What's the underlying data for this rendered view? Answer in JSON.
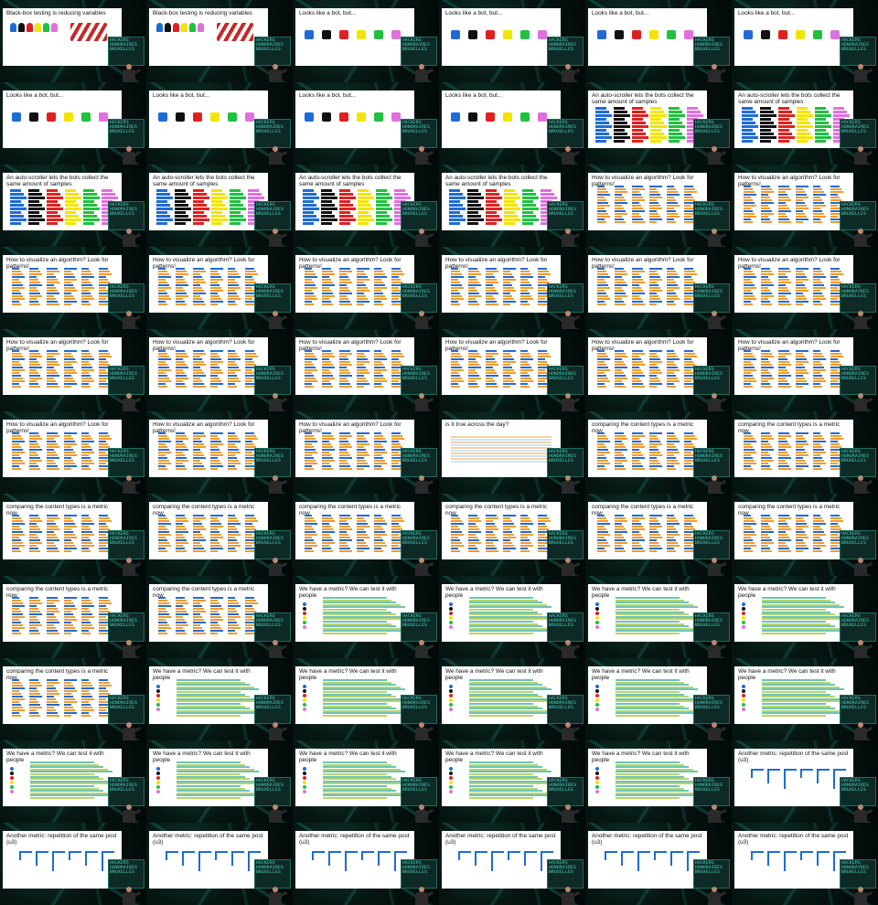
{
  "brand": "HACKERS\nHONORAIRES\nBRUXELLES",
  "colors": {
    "teal": "#2fc8b2",
    "blue": "#1f6bd6",
    "black": "#111111",
    "red": "#e02020",
    "yellow": "#f2e400",
    "green": "#20c040",
    "magenta": "#e070e0",
    "orange": "#f29a2e",
    "gray": "#d9d9d9"
  },
  "slides": [
    {
      "type": "blackbox",
      "title": "Black-box testing is reducing variables"
    },
    {
      "type": "blackbox",
      "title": "Black-box testing is reducing variables"
    },
    {
      "type": "bot",
      "title": "Looks like a bot, but..."
    },
    {
      "type": "bot",
      "title": "Looks like a bot, but..."
    },
    {
      "type": "bot",
      "title": "Looks like a bot, but..."
    },
    {
      "type": "bot",
      "title": "Looks like a bot, but..."
    },
    {
      "type": "bot",
      "title": "Looks like a bot, but..."
    },
    {
      "type": "bot",
      "title": "Looks like a bot, but..."
    },
    {
      "type": "bot",
      "title": "Looks like a bot, but..."
    },
    {
      "type": "bot",
      "title": "Looks like a bot, but..."
    },
    {
      "type": "autoscroll",
      "title": "An auto-scroller lets the bots collect the same amount of samples"
    },
    {
      "type": "autoscroll",
      "title": "An auto-scroller lets the bots collect the same amount of samples"
    },
    {
      "type": "autoscroll",
      "title": "An auto-scroller lets the bots collect the same amount of samples"
    },
    {
      "type": "autoscroll",
      "title": "An auto-scroller lets the bots collect the same amount of samples"
    },
    {
      "type": "autoscroll",
      "title": "An auto-scroller lets the bots collect the same amount of samples"
    },
    {
      "type": "autoscroll",
      "title": "An auto-scroller lets the bots collect the same amount of samples"
    },
    {
      "type": "pattern",
      "title": "How to visualize an algorithm? Look for patterns!"
    },
    {
      "type": "pattern",
      "title": "How to visualize an algorithm? Look for patterns!"
    },
    {
      "type": "pattern",
      "title": "How to visualize an algorithm? Look for patterns!"
    },
    {
      "type": "pattern",
      "title": "How to visualize an algorithm? Look for patterns!"
    },
    {
      "type": "pattern",
      "title": "How to visualize an algorithm? Look for patterns!"
    },
    {
      "type": "pattern",
      "title": "How to visualize an algorithm? Look for patterns!"
    },
    {
      "type": "pattern",
      "title": "How to visualize an algorithm? Look for patterns!"
    },
    {
      "type": "pattern",
      "title": "How to visualize an algorithm? Look for patterns!"
    },
    {
      "type": "pattern",
      "title": "How to visualize an algorithm? Look for patterns!"
    },
    {
      "type": "pattern",
      "title": "How to visualize an algorithm? Look for patterns!"
    },
    {
      "type": "pattern",
      "title": "How to visualize an algorithm? Look for patterns!"
    },
    {
      "type": "pattern",
      "title": "How to visualize an algorithm? Look for patterns!"
    },
    {
      "type": "pattern",
      "title": "How to visualize an algorithm? Look for patterns!"
    },
    {
      "type": "pattern",
      "title": "How to visualize an algorithm? Look for patterns!"
    },
    {
      "type": "pattern",
      "title": "How to visualize an algorithm? Look for patterns!"
    },
    {
      "type": "pattern",
      "title": "How to visualize an algorithm? Look for patterns!"
    },
    {
      "type": "pattern",
      "title": "How to visualize an algorithm? Look for patterns!"
    },
    {
      "type": "day",
      "title": "is it true across the day?"
    },
    {
      "type": "metric",
      "title": "comparing the content types is a metric now"
    },
    {
      "type": "metric",
      "title": "comparing the content types is a metric now"
    },
    {
      "type": "metric",
      "title": "comparing the content types is a metric now"
    },
    {
      "type": "metric",
      "title": "comparing the content types is a metric now"
    },
    {
      "type": "metric",
      "title": "comparing the content types is a metric now"
    },
    {
      "type": "metric",
      "title": "comparing the content types is a metric now"
    },
    {
      "type": "metric",
      "title": "comparing the content types is a metric now"
    },
    {
      "type": "metric",
      "title": "comparing the content types is a metric now"
    },
    {
      "type": "metric",
      "title": "comparing the content types is a metric now"
    },
    {
      "type": "metric",
      "title": "comparing the content types is a metric now"
    },
    {
      "type": "people",
      "title": "We have a metric? We can test it with people"
    },
    {
      "type": "people",
      "title": "We have a metric? We can test it with people"
    },
    {
      "type": "people",
      "title": "We have a metric? We can test it with people"
    },
    {
      "type": "people",
      "title": "We have a metric? We can test it with people"
    },
    {
      "type": "metric",
      "title": "comparing the content types is a metric now"
    },
    {
      "type": "people",
      "title": "We have a metric? We can test it with people"
    },
    {
      "type": "people",
      "title": "We have a metric? We can test it with people"
    },
    {
      "type": "people",
      "title": "We have a metric? We can test it with people"
    },
    {
      "type": "people",
      "title": "We have a metric? We can test it with people"
    },
    {
      "type": "people",
      "title": "We have a metric? We can test it with people"
    },
    {
      "type": "people",
      "title": "We have a metric? We can test it with people"
    },
    {
      "type": "people",
      "title": "We have a metric? We can test it with people"
    },
    {
      "type": "people",
      "title": "We have a metric? We can test it with people"
    },
    {
      "type": "people",
      "title": "We have a metric? We can test it with people"
    },
    {
      "type": "people",
      "title": "We have a metric? We can test it with people"
    },
    {
      "type": "repetition",
      "title": "Another metric: repetition of the same post (u3)"
    },
    {
      "type": "repetition",
      "title": "Another metric: repetition of the same post (u3)"
    },
    {
      "type": "repetition",
      "title": "Another metric: repetition of the same post (u3)"
    },
    {
      "type": "repetition",
      "title": "Another metric: repetition of the same post (u3)"
    },
    {
      "type": "repetition",
      "title": "Another metric: repetition of the same post (u3)"
    },
    {
      "type": "repetition",
      "title": "Another metric: repetition of the same post (u3)"
    },
    {
      "type": "repetition",
      "title": "Another metric: repetition of the same post (u3)"
    }
  ]
}
